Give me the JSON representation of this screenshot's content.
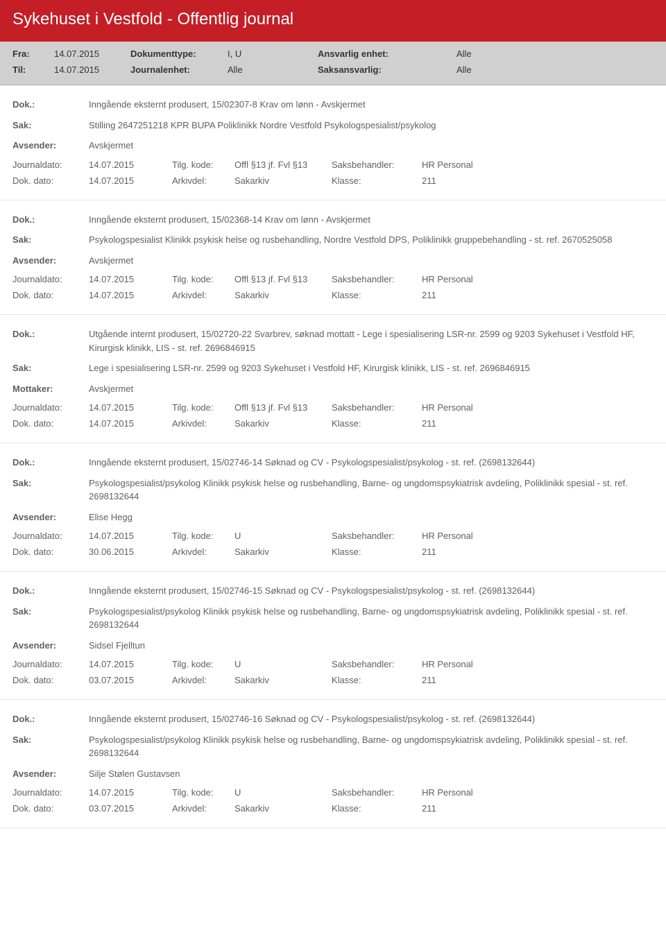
{
  "header": {
    "title": "Sykehuset i Vestfold - Offentlig journal",
    "labels": {
      "fra": "Fra:",
      "til": "Til:",
      "dokumenttype": "Dokumenttype:",
      "journalenhet": "Journalenhet:",
      "ansvarlig_enhet": "Ansvarlig enhet:",
      "saksansvarlig": "Saksansvarlig:"
    },
    "fra": "14.07.2015",
    "til": "14.07.2015",
    "dokumenttype": "I, U",
    "journalenhet": "Alle",
    "ansvarlig_enhet": "Alle",
    "saksansvarlig": "Alle"
  },
  "field_labels": {
    "dok": "Dok.:",
    "sak": "Sak:",
    "avsender": "Avsender:",
    "mottaker": "Mottaker:",
    "journaldato": "Journaldato:",
    "dokdato": "Dok. dato:",
    "tilgkode": "Tilg. kode:",
    "arkivdel": "Arkivdel:",
    "saksbehandler": "Saksbehandler:",
    "klasse": "Klasse:"
  },
  "entries": [
    {
      "dok": "Inngående eksternt produsert, 15/02307-8 Krav om lønn - Avskjermet",
      "sak": "Stilling 2647251218 KPR BUPA Poliklinikk Nordre Vestfold Psykologspesialist/psykolog",
      "party_label": "Avsender:",
      "party": "Avskjermet",
      "journaldato": "14.07.2015",
      "tilgkode": "Offl §13 jf. Fvl §13",
      "saksbehandler": "HR Personal",
      "dokdato": "14.07.2015",
      "arkivdel": "Sakarkiv",
      "klasse": "211"
    },
    {
      "dok": "Inngående eksternt produsert, 15/02368-14 Krav om lønn - Avskjermet",
      "sak": "Psykologspesialist Klinikk psykisk helse og rusbehandling, Nordre Vestfold DPS, Poliklinikk gruppebehandling - st. ref. 2670525058",
      "party_label": "Avsender:",
      "party": "Avskjermet",
      "journaldato": "14.07.2015",
      "tilgkode": "Offl §13 jf. Fvl §13",
      "saksbehandler": "HR Personal",
      "dokdato": "14.07.2015",
      "arkivdel": "Sakarkiv",
      "klasse": "211"
    },
    {
      "dok": "Utgående internt produsert, 15/02720-22 Svarbrev, søknad mottatt - Lege i spesialisering LSR-nr. 2599 og 9203 Sykehuset i Vestfold HF, Kirurgisk klinikk, LIS - st. ref. 2696846915",
      "sak": "Lege i spesialisering LSR-nr. 2599 og 9203 Sykehuset i Vestfold HF, Kirurgisk klinikk, LIS - st. ref. 2696846915",
      "party_label": "Mottaker:",
      "party": "Avskjermet",
      "journaldato": "14.07.2015",
      "tilgkode": "Offl §13 jf. Fvl §13",
      "saksbehandler": "HR Personal",
      "dokdato": "14.07.2015",
      "arkivdel": "Sakarkiv",
      "klasse": "211"
    },
    {
      "dok": "Inngående eksternt produsert, 15/02746-14 Søknad og CV - Psykologspesialist/psykolog - st. ref. (2698132644)",
      "sak": "Psykologspesialist/psykolog Klinikk psykisk helse og rusbehandling, Barne- og ungdomspsykiatrisk avdeling, Poliklinikk spesial - st. ref. 2698132644",
      "party_label": "Avsender:",
      "party": "Elise Hegg",
      "journaldato": "14.07.2015",
      "tilgkode": "U",
      "saksbehandler": "HR Personal",
      "dokdato": "30.06.2015",
      "arkivdel": "Sakarkiv",
      "klasse": "211"
    },
    {
      "dok": "Inngående eksternt produsert, 15/02746-15 Søknad og CV - Psykologspesialist/psykolog - st. ref. (2698132644)",
      "sak": "Psykologspesialist/psykolog Klinikk psykisk helse og rusbehandling, Barne- og ungdomspsykiatrisk avdeling, Poliklinikk spesial - st. ref. 2698132644",
      "party_label": "Avsender:",
      "party": "Sidsel Fjelltun",
      "journaldato": "14.07.2015",
      "tilgkode": "U",
      "saksbehandler": "HR Personal",
      "dokdato": "03.07.2015",
      "arkivdel": "Sakarkiv",
      "klasse": "211"
    },
    {
      "dok": "Inngående eksternt produsert, 15/02746-16 Søknad og CV - Psykologspesialist/psykolog - st. ref. (2698132644)",
      "sak": "Psykologspesialist/psykolog Klinikk psykisk helse og rusbehandling, Barne- og ungdomspsykiatrisk avdeling, Poliklinikk spesial - st. ref. 2698132644",
      "party_label": "Avsender:",
      "party": "Silje Stølen Gustavsen",
      "journaldato": "14.07.2015",
      "tilgkode": "U",
      "saksbehandler": "HR Personal",
      "dokdato": "03.07.2015",
      "arkivdel": "Sakarkiv",
      "klasse": "211"
    }
  ]
}
